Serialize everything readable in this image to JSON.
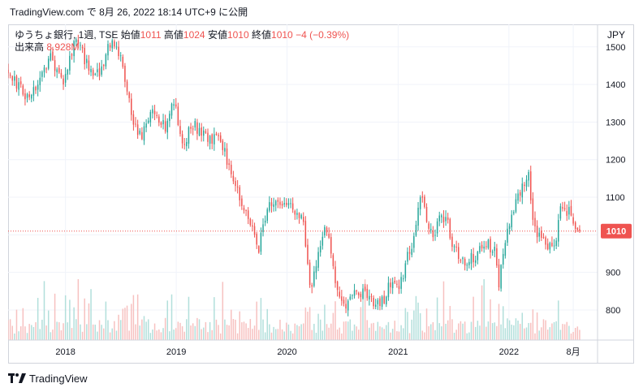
{
  "header": {
    "source": "TradingView.com",
    "text": "で 8月 26, 2022 18:14 UTC+9 に公開"
  },
  "legend": {
    "symbol": "ゆうちょ銀行, 1週, TSE",
    "open_label": "始値",
    "open_value": "1011",
    "high_label": "高値",
    "high_value": "1024",
    "low_label": "安値",
    "low_value": "1010",
    "close_label": "終値",
    "close_value": "1010",
    "change": "−4 (−0.39%)",
    "volume_label": "出来高",
    "volume_value": "8.928M"
  },
  "axis": {
    "currency": "JPY",
    "last_price_label": "1010"
  },
  "footer": {
    "brand": "TradingView"
  },
  "colors": {
    "up": "#26a69a",
    "down": "#ef5350",
    "up_volume": "#b2dfdb",
    "down_volume": "#f7c1c0",
    "price_line": "#ef5350",
    "grid": "#f0f3fa",
    "border": "#d1d4dc"
  },
  "chart_data": {
    "type": "candlestick",
    "interval": "1W",
    "y_ticks": [
      "800",
      "900",
      "1000",
      "1100",
      "1200",
      "1300",
      "1400",
      "1500"
    ],
    "ylim": [
      720,
      1560
    ],
    "x_ticks": [
      {
        "label": "2018",
        "date": "2018-01-01"
      },
      {
        "label": "2019",
        "date": "2019-01-01"
      },
      {
        "label": "2020",
        "date": "2020-01-01"
      },
      {
        "label": "2021",
        "date": "2021-01-01"
      },
      {
        "label": "2022",
        "date": "2022-01-01"
      },
      {
        "label": "8月",
        "date": "2022-08-01"
      }
    ],
    "x_range": [
      "2017-06-26",
      "2022-10-20"
    ],
    "last_price": 1010,
    "series": [
      {
        "name": "ゆうちょ銀行",
        "anchors": [
          [
            "2017-06-26",
            1440
          ],
          [
            "2017-08-14",
            1375
          ],
          [
            "2017-09-25",
            1390
          ],
          [
            "2017-11-13",
            1470
          ],
          [
            "2017-12-25",
            1400
          ],
          [
            "2018-02-05",
            1525
          ],
          [
            "2018-03-19",
            1440
          ],
          [
            "2018-04-23",
            1430
          ],
          [
            "2018-05-28",
            1510
          ],
          [
            "2018-07-02",
            1470
          ],
          [
            "2018-08-13",
            1290
          ],
          [
            "2018-09-10",
            1270
          ],
          [
            "2018-10-22",
            1330
          ],
          [
            "2018-11-26",
            1280
          ],
          [
            "2018-12-24",
            1350
          ],
          [
            "2019-01-21",
            1250
          ],
          [
            "2019-03-04",
            1290
          ],
          [
            "2019-04-22",
            1255
          ],
          [
            "2019-05-27",
            1250
          ],
          [
            "2019-06-24",
            1180
          ],
          [
            "2019-07-22",
            1110
          ],
          [
            "2019-08-19",
            1060
          ],
          [
            "2019-09-30",
            960
          ],
          [
            "2019-10-28",
            1080
          ],
          [
            "2019-12-02",
            1090
          ],
          [
            "2019-12-30",
            1075
          ],
          [
            "2020-02-03",
            1060
          ],
          [
            "2020-02-24",
            1030
          ],
          [
            "2020-03-16",
            850
          ],
          [
            "2020-04-13",
            950
          ],
          [
            "2020-05-04",
            1010
          ],
          [
            "2020-05-25",
            960
          ],
          [
            "2020-06-15",
            850
          ],
          [
            "2020-07-13",
            800
          ],
          [
            "2020-08-10",
            840
          ],
          [
            "2020-09-07",
            850
          ],
          [
            "2020-10-05",
            830
          ],
          [
            "2020-11-02",
            810
          ],
          [
            "2020-12-07",
            870
          ],
          [
            "2021-01-04",
            860
          ],
          [
            "2021-02-01",
            940
          ],
          [
            "2021-02-22",
            980
          ],
          [
            "2021-03-15",
            1110
          ],
          [
            "2021-04-05",
            1040
          ],
          [
            "2021-04-26",
            1000
          ],
          [
            "2021-05-24",
            1060
          ],
          [
            "2021-06-14",
            1030
          ],
          [
            "2021-07-05",
            960
          ],
          [
            "2021-08-16",
            930
          ],
          [
            "2021-09-20",
            950
          ],
          [
            "2021-10-18",
            980
          ],
          [
            "2021-11-15",
            960
          ],
          [
            "2021-11-29",
            860
          ],
          [
            "2021-12-13",
            950
          ],
          [
            "2022-01-10",
            1050
          ],
          [
            "2022-01-31",
            1100
          ],
          [
            "2022-03-07",
            1170
          ],
          [
            "2022-03-21",
            1040
          ],
          [
            "2022-04-11",
            990
          ],
          [
            "2022-05-09",
            970
          ],
          [
            "2022-06-06",
            990
          ],
          [
            "2022-06-20",
            1060
          ],
          [
            "2022-07-18",
            1060
          ],
          [
            "2022-08-01",
            1030
          ],
          [
            "2022-08-22",
            1010
          ]
        ]
      }
    ]
  }
}
